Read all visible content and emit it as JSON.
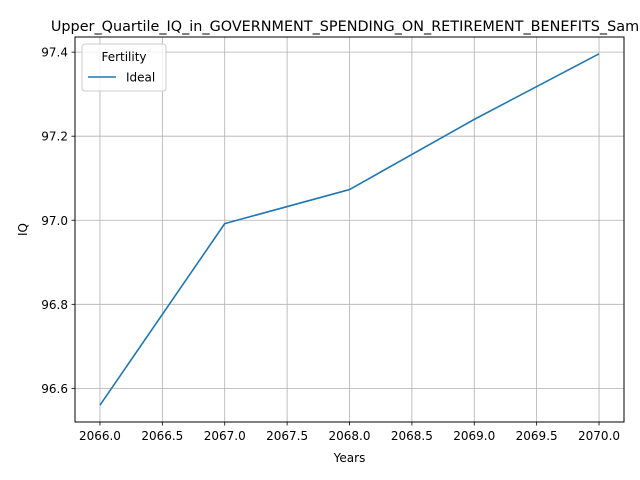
{
  "chart_data": {
    "type": "line",
    "title": "Upper_Quartile_IQ_in_GOVERNMENT_SPENDING_ON_RETIREMENT_BENEFITS_Sample",
    "xlabel": "Years",
    "ylabel": "IQ",
    "x": [
      2066,
      2067,
      2068,
      2069,
      2070
    ],
    "series": [
      {
        "name": "Ideal",
        "values": [
          96.56,
          96.992,
          97.073,
          97.24,
          97.396
        ],
        "color": "#1f77b4"
      }
    ],
    "xlim": [
      2065.8,
      2070.2
    ],
    "ylim": [
      96.52,
      97.436
    ],
    "xticks": [
      "2066.0",
      "2066.5",
      "2067.0",
      "2067.5",
      "2068.0",
      "2068.5",
      "2069.0",
      "2069.5",
      "2070.0"
    ],
    "yticks": [
      "96.6",
      "96.8",
      "97.0",
      "97.2",
      "97.4"
    ],
    "grid": true,
    "legend": {
      "title": "Fertility",
      "placement": "top-left"
    }
  }
}
